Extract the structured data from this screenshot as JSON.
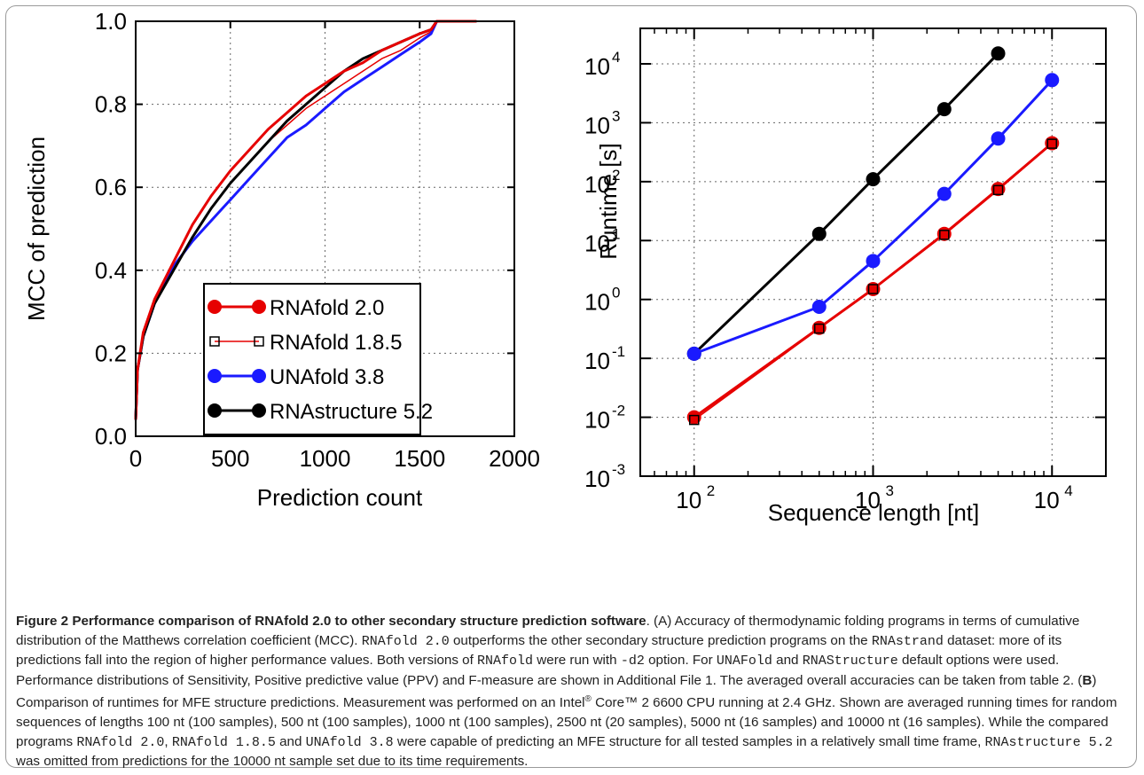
{
  "chart_data": [
    {
      "panel": "A",
      "type": "line",
      "title": "",
      "xlabel": "Prediction count",
      "ylabel": "MCC of prediction",
      "xlim": [
        0,
        2000
      ],
      "ylim": [
        0,
        1
      ],
      "xticks": [
        "0",
        "500",
        "1000",
        "1500",
        "2000"
      ],
      "yticks": [
        "0.0",
        "0.2",
        "0.4",
        "0.6",
        "0.8",
        "1.0"
      ],
      "grid": true,
      "legend_position": "bottom-right",
      "series": [
        {
          "name": "RNAfold 1.8.5",
          "color": "#e60000",
          "marker": "open-square-line",
          "x": [
            0,
            10,
            40,
            100,
            200,
            300,
            400,
            500,
            600,
            700,
            800,
            900,
            1000,
            1100,
            1200,
            1300,
            1400,
            1500,
            1560,
            1590,
            1800
          ],
          "y": [
            0.04,
            0.16,
            0.24,
            0.32,
            0.4,
            0.48,
            0.55,
            0.61,
            0.66,
            0.71,
            0.75,
            0.79,
            0.82,
            0.85,
            0.88,
            0.91,
            0.93,
            0.96,
            0.975,
            1.0,
            1.0
          ]
        },
        {
          "name": "UNAfold 3.8",
          "color": "#1a1aff",
          "marker": "filled-circle-line",
          "x": [
            0,
            10,
            40,
            100,
            200,
            300,
            400,
            500,
            600,
            700,
            800,
            900,
            1000,
            1100,
            1200,
            1300,
            1400,
            1500,
            1560,
            1590,
            1800
          ],
          "y": [
            0.04,
            0.16,
            0.24,
            0.32,
            0.41,
            0.47,
            0.52,
            0.57,
            0.62,
            0.67,
            0.72,
            0.75,
            0.79,
            0.83,
            0.86,
            0.89,
            0.92,
            0.95,
            0.97,
            1.0,
            1.0
          ]
        },
        {
          "name": "RNAstructure 5.2",
          "color": "#000000",
          "marker": "filled-circle-line",
          "x": [
            0,
            10,
            40,
            100,
            200,
            300,
            400,
            500,
            600,
            700,
            800,
            900,
            1000,
            1100,
            1200,
            1300,
            1400,
            1500,
            1560,
            1590,
            1800
          ],
          "y": [
            0.04,
            0.16,
            0.24,
            0.32,
            0.4,
            0.48,
            0.55,
            0.61,
            0.66,
            0.71,
            0.76,
            0.8,
            0.84,
            0.88,
            0.91,
            0.93,
            0.95,
            0.97,
            0.98,
            1.0,
            1.0
          ]
        },
        {
          "name": "RNAfold 2.0",
          "color": "#e60000",
          "marker": "filled-circle-line",
          "x": [
            0,
            10,
            40,
            100,
            200,
            300,
            400,
            500,
            600,
            700,
            800,
            900,
            1000,
            1100,
            1200,
            1300,
            1400,
            1500,
            1560,
            1590,
            1800
          ],
          "y": [
            0.04,
            0.16,
            0.25,
            0.33,
            0.42,
            0.51,
            0.58,
            0.64,
            0.69,
            0.74,
            0.78,
            0.82,
            0.85,
            0.88,
            0.9,
            0.93,
            0.95,
            0.97,
            0.98,
            1.0,
            1.0
          ]
        }
      ]
    },
    {
      "panel": "B",
      "type": "line",
      "title": "",
      "xlabel": "Sequence length [nt]",
      "ylabel": "Runtime [s]",
      "x_scale": "log",
      "y_scale": "log",
      "xlim": [
        50,
        20000
      ],
      "ylim": [
        0.001,
        40000
      ],
      "xticks": [
        100,
        1000,
        10000
      ],
      "yticks": [
        0.001,
        0.01,
        0.1,
        1,
        10,
        100,
        1000,
        10000
      ],
      "grid": true,
      "series": [
        {
          "name": "RNAfold 2.0",
          "color": "#e60000",
          "marker": "filled-circle-line",
          "x": [
            100,
            500,
            1000,
            2500,
            5000,
            10000
          ],
          "y": [
            0.01,
            0.33,
            1.5,
            13,
            75,
            450
          ]
        },
        {
          "name": "RNAfold 1.8.5",
          "color": "#e60000",
          "marker": "open-square-line",
          "x": [
            100,
            500,
            1000,
            2500,
            5000,
            10000
          ],
          "y": [
            0.009,
            0.32,
            1.5,
            12.5,
            72,
            440
          ]
        },
        {
          "name": "UNAfold 3.8",
          "color": "#1a1aff",
          "marker": "filled-circle-line",
          "x": [
            100,
            500,
            1000,
            2500,
            5000,
            10000
          ],
          "y": [
            0.12,
            0.75,
            4.5,
            62,
            540,
            5300
          ]
        },
        {
          "name": "RNAstructure 5.2",
          "color": "#000000",
          "marker": "filled-circle-line",
          "x": [
            100,
            500,
            1000,
            2500,
            5000
          ],
          "y": [
            0.12,
            13,
            110,
            1700,
            15000
          ]
        }
      ]
    }
  ],
  "caption": {
    "figure_label": "Figure 2",
    "title": "Performance comparison of RNAfold 2.0 to other secondary structure prediction software",
    "s1": ". (A) Accuracy of thermodynamic folding programs in terms of cumulative distribution of the Matthews correlation coefficient (MCC). ",
    "c1": "RNAfold 2.0",
    "s2": " outperforms the other secondary structure prediction programs on the ",
    "c2": "RNAstrand",
    "s3": " dataset: more of its predictions fall into the region of higher performance values. Both versions of ",
    "c3": "RNAfold",
    "s4": " were run with ",
    "c4": "-d2",
    "s5": " option. For ",
    "c5": "UNAFold",
    "s6": " and ",
    "c6": "RNAStructure",
    "s7": " default options were used. Performance distributions of Sensitivity, Positive predictive value (PPV) and F-measure are shown in Additional File 1. The averaged overall accuracies can be taken from table 2. (",
    "b_label": "B",
    "s8": ") Comparison of runtimes for MFE structure predictions. Measurement was performed on an Intel",
    "reg": "®",
    "s9": " Core™ 2 6600 CPU running at 2.4 GHz. Shown are averaged running times for random sequences of lengths 100 nt (100 samples), 500 nt (100 samples), 1000 nt (100 samples), 2500 nt (20 samples), 5000 nt (16 samples) and 10000 nt (16 samples). While the compared programs ",
    "c7": "RNAfold 2.0",
    "s10": ", ",
    "c8": "RNAfold 1.8.5",
    "s11": " and ",
    "c9": "UNAfold 3.8",
    "s12": " were capable of predicting an MFE structure for all tested samples in a relatively small time frame, ",
    "c10": "RNAstructure 5.2",
    "s13": " was omitted from predictions for the 10000 nt sample set due to its time requirements."
  }
}
